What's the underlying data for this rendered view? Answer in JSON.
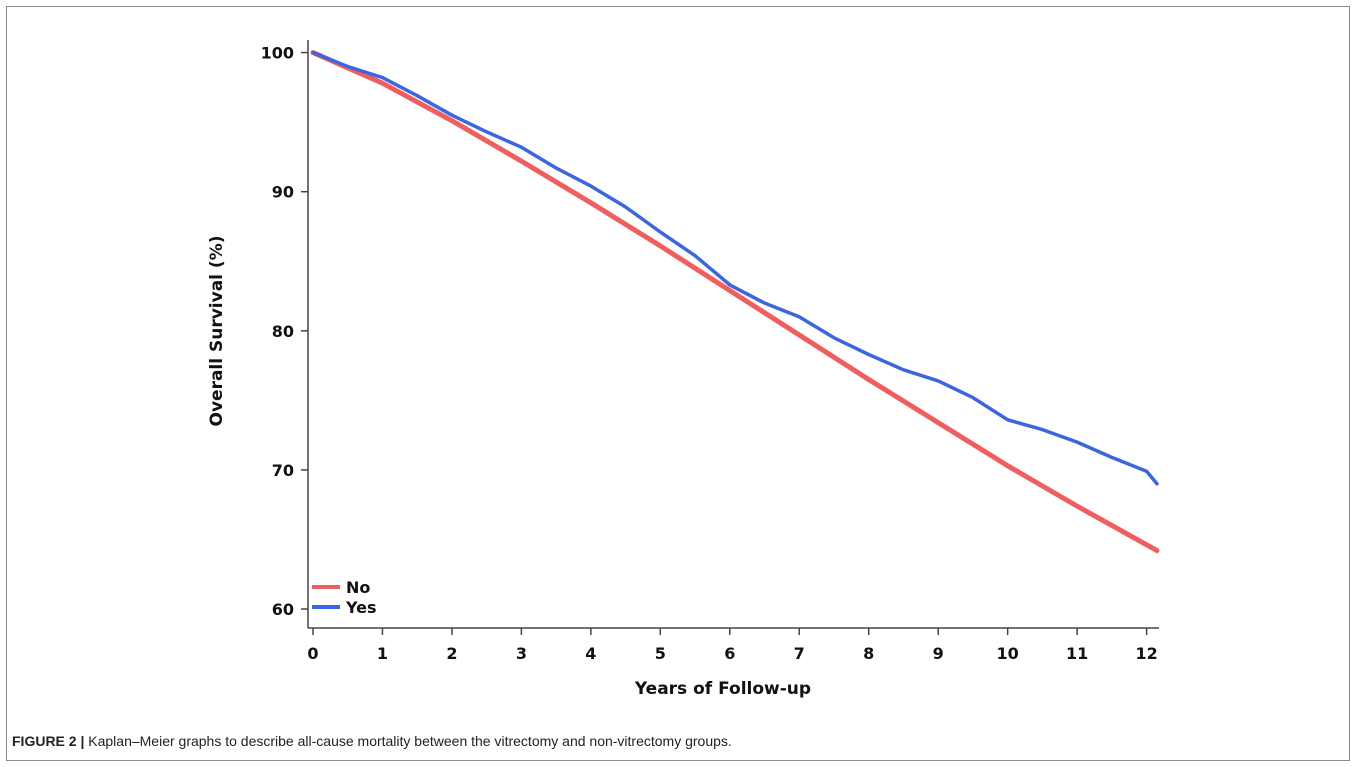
{
  "chart_data": {
    "type": "line",
    "title": "",
    "xlabel": "Years of Follow-up",
    "ylabel": "Overall Survival (%)",
    "xlim": [
      0,
      12.15
    ],
    "ylim": [
      59.5,
      100.4
    ],
    "x_ticks": [
      "0",
      "1",
      "2",
      "3",
      "4",
      "5",
      "6",
      "7",
      "8",
      "9",
      "10",
      "11",
      "12"
    ],
    "y_ticks": [
      "60",
      "70",
      "80",
      "90",
      "100"
    ],
    "grid": false,
    "legend_position": "bottom-left",
    "series": [
      {
        "name": "No",
        "color": "#ef5f60",
        "x": [
          0,
          1,
          2,
          3,
          4,
          5,
          6,
          7,
          8,
          9,
          10,
          11,
          12.15
        ],
        "y": [
          100,
          97.8,
          95.1,
          92.2,
          89.2,
          86.1,
          82.9,
          79.7,
          76.5,
          73.4,
          70.3,
          67.4,
          64.2
        ]
      },
      {
        "name": "Yes",
        "color": "#3c66dd",
        "x": [
          0,
          0.5,
          1,
          1.5,
          2,
          2.5,
          3,
          3.5,
          4,
          4.5,
          5,
          5.5,
          6,
          6.5,
          7,
          7.5,
          8,
          8.5,
          9,
          9.5,
          10,
          10.5,
          11,
          11.5,
          12,
          12.15
        ],
        "y": [
          100,
          99,
          98.2,
          96.9,
          95.5,
          94.3,
          93.2,
          91.7,
          90.4,
          88.9,
          87.1,
          85.4,
          83.3,
          82.0,
          81.0,
          79.5,
          78.3,
          77.2,
          76.4,
          75.2,
          73.6,
          72.9,
          72.0,
          70.9,
          69.9,
          69.0
        ]
      }
    ]
  },
  "caption": {
    "label": "FIGURE 2 |",
    "text": " Kaplan–Meier graphs to describe all-cause mortality between the vitrectomy and non-vitrectomy groups."
  }
}
